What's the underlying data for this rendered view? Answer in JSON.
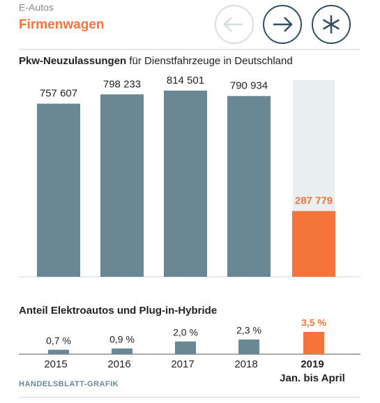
{
  "header": {
    "kicker": "E-Autos",
    "title": "Firmenwagen"
  },
  "chart_data": [
    {
      "type": "bar",
      "title_bold": "Pkw-Neuzulassungen",
      "title_rest": " für Dienstfahrzeuge in Deutschland",
      "values": [
        757607,
        798233,
        814501,
        790934,
        287779
      ],
      "value_labels": [
        "757 607",
        "798 233",
        "814 501",
        "790 934",
        "287 779"
      ],
      "colors": [
        "#6a8893",
        "#6a8893",
        "#6a8893",
        "#6a8893",
        "#f4743b"
      ]
    },
    {
      "type": "bar",
      "title": "Anteil Elektroautos und Plug-in-Hybride",
      "categories": [
        "2015",
        "2016",
        "2017",
        "2018",
        "2019"
      ],
      "category_note": "Jan. bis April",
      "values": [
        0.7,
        0.9,
        2.0,
        2.3,
        3.5
      ],
      "value_labels": [
        "0,7 %",
        "0,9 %",
        "2,0 %",
        "2,3 %",
        "3,5 %"
      ],
      "colors": [
        "#6a8893",
        "#6a8893",
        "#6a8893",
        "#6a8893",
        "#f4743b"
      ]
    }
  ],
  "footer": {
    "source": "HANDELSBLATT-GRAFIK"
  }
}
